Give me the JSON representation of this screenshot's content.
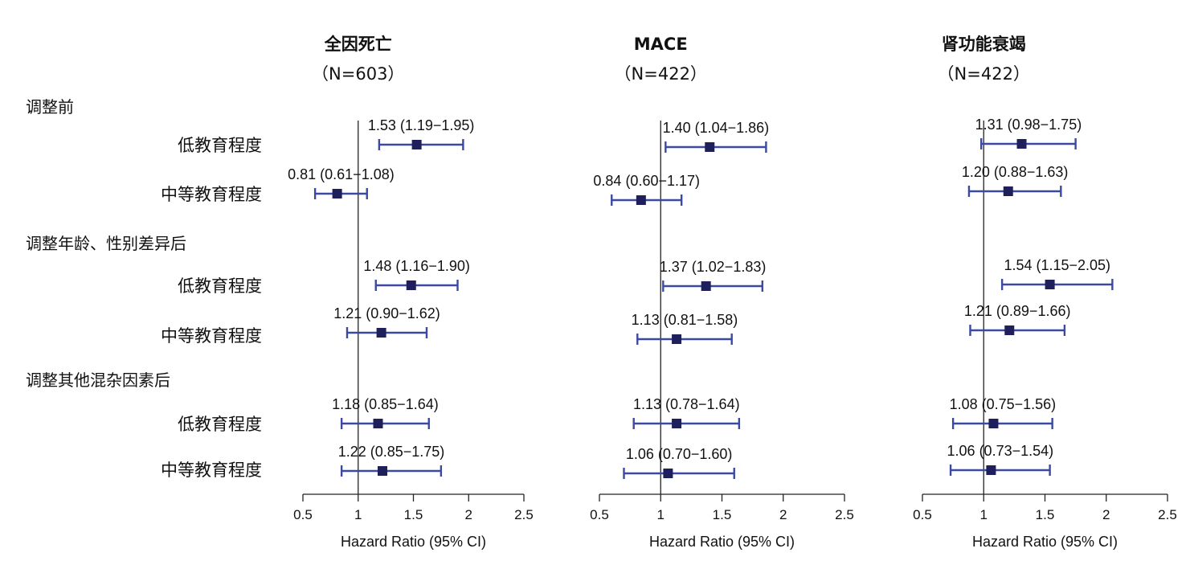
{
  "chart_data": {
    "type": "forest",
    "xlabel": "Hazard Ratio (95% CI)",
    "xlim": [
      0.5,
      2.5
    ],
    "xticks": [
      "0.5",
      "1",
      "1.5",
      "2",
      "2.5"
    ],
    "reference_line": 1,
    "groups": [
      {
        "label": "调整前",
        "rows": [
          {
            "label": "低教育程度"
          },
          {
            "label": "中等教育程度"
          }
        ]
      },
      {
        "label": "调整年龄、性别差异后",
        "rows": [
          {
            "label": "低教育程度"
          },
          {
            "label": "中等教育程度"
          }
        ]
      },
      {
        "label": "调整其他混杂因素后",
        "rows": [
          {
            "label": "低教育程度"
          },
          {
            "label": "中等教育程度"
          }
        ]
      }
    ],
    "panels": [
      {
        "title": "全因死亡",
        "subtitle": "（N=603）",
        "estimates": [
          {
            "hr": 1.53,
            "lo": 1.19,
            "hi": 1.95,
            "text": "1.53 (1.19−1.95)"
          },
          {
            "hr": 0.81,
            "lo": 0.61,
            "hi": 1.08,
            "text": "0.81 (0.61−1.08)"
          },
          {
            "hr": 1.48,
            "lo": 1.16,
            "hi": 1.9,
            "text": "1.48 (1.16−1.90)"
          },
          {
            "hr": 1.21,
            "lo": 0.9,
            "hi": 1.62,
            "text": "1.21 (0.90−1.62)"
          },
          {
            "hr": 1.18,
            "lo": 0.85,
            "hi": 1.64,
            "text": "1.18 (0.85−1.64)"
          },
          {
            "hr": 1.22,
            "lo": 0.85,
            "hi": 1.75,
            "text": "1.22 (0.85−1.75)"
          }
        ]
      },
      {
        "title": "MACE",
        "subtitle": "（N=422）",
        "estimates": [
          {
            "hr": 1.4,
            "lo": 1.04,
            "hi": 1.86,
            "text": "1.40 (1.04−1.86)"
          },
          {
            "hr": 0.84,
            "lo": 0.6,
            "hi": 1.17,
            "text": "0.84 (0.60−1.17)"
          },
          {
            "hr": 1.37,
            "lo": 1.02,
            "hi": 1.83,
            "text": "1.37 (1.02−1.83)"
          },
          {
            "hr": 1.13,
            "lo": 0.81,
            "hi": 1.58,
            "text": "1.13 (0.81−1.58)"
          },
          {
            "hr": 1.13,
            "lo": 0.78,
            "hi": 1.64,
            "text": "1.13 (0.78−1.64)"
          },
          {
            "hr": 1.06,
            "lo": 0.7,
            "hi": 1.6,
            "text": "1.06 (0.70−1.60)"
          }
        ]
      },
      {
        "title": "肾功能衰竭",
        "subtitle": "（N=422）",
        "estimates": [
          {
            "hr": 1.31,
            "lo": 0.98,
            "hi": 1.75,
            "text": "1.31 (0.98−1.75)"
          },
          {
            "hr": 1.2,
            "lo": 0.88,
            "hi": 1.63,
            "text": "1.20 (0.88−1.63)"
          },
          {
            "hr": 1.54,
            "lo": 1.15,
            "hi": 2.05,
            "text": "1.54 (1.15−2.05)"
          },
          {
            "hr": 1.21,
            "lo": 0.89,
            "hi": 1.66,
            "text": "1.21 (0.89−1.66)"
          },
          {
            "hr": 1.08,
            "lo": 0.75,
            "hi": 1.56,
            "text": "1.08 (0.75−1.56)"
          },
          {
            "hr": 1.06,
            "lo": 0.73,
            "hi": 1.54,
            "text": "1.06 (0.73−1.54)"
          }
        ]
      }
    ],
    "colors": {
      "ci_line": "#3b4aa0",
      "marker": "#1f1f5c",
      "reference": "#222222",
      "axis": "#222222"
    }
  }
}
